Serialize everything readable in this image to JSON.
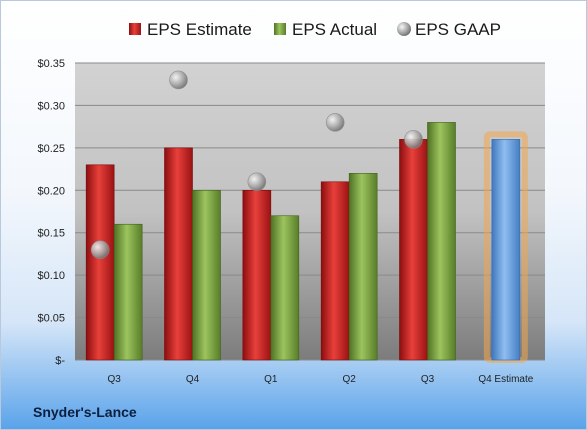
{
  "company": "Snyder's-Lance",
  "chart_data": {
    "type": "bar",
    "categories": [
      "Q3",
      "Q4",
      "Q1",
      "Q2",
      "Q3",
      "Q4 Estimate"
    ],
    "series": [
      {
        "name": "EPS Estimate",
        "values": [
          0.23,
          0.25,
          0.2,
          0.21,
          0.26,
          null
        ]
      },
      {
        "name": "EPS Actual",
        "values": [
          0.16,
          0.2,
          0.17,
          0.22,
          0.28,
          null
        ]
      },
      {
        "name": "EPS GAAP",
        "values": [
          0.13,
          0.33,
          0.21,
          0.28,
          0.26,
          null
        ]
      }
    ],
    "forecast": {
      "category": "Q4 Estimate",
      "value": 0.26
    },
    "y_ticks": [
      {
        "value": 0.35,
        "label": "$0.35"
      },
      {
        "value": 0.3,
        "label": "$0.30"
      },
      {
        "value": 0.25,
        "label": "$0.25"
      },
      {
        "value": 0.2,
        "label": "$0.20"
      },
      {
        "value": 0.15,
        "label": "$0.15"
      },
      {
        "value": 0.1,
        "label": "$0.10"
      },
      {
        "value": 0.05,
        "label": "$0.05"
      },
      {
        "value": 0,
        "label": "$-"
      }
    ],
    "ylim": [
      0,
      0.35
    ],
    "grid": true,
    "legend_position": "top",
    "colors": {
      "estimate": "#c0171b",
      "actual": "#77a03a",
      "gaap": "#a9a9a9",
      "forecast": "#6d9fd8",
      "forecast_glow": "#f2a64a"
    }
  }
}
